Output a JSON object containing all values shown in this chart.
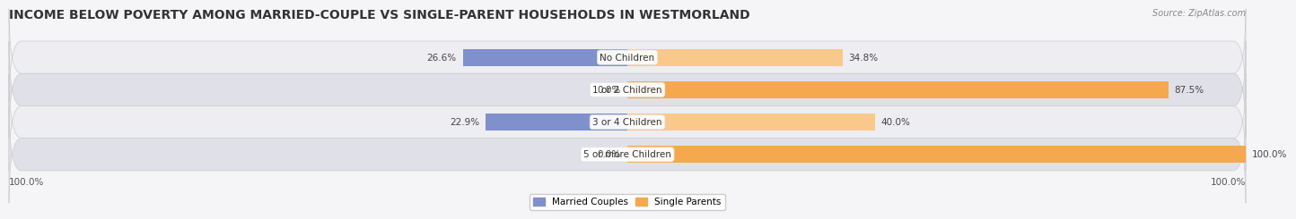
{
  "title": "INCOME BELOW POVERTY AMONG MARRIED-COUPLE VS SINGLE-PARENT HOUSEHOLDS IN WESTMORLAND",
  "source": "Source: ZipAtlas.com",
  "categories": [
    "No Children",
    "1 or 2 Children",
    "3 or 4 Children",
    "5 or more Children"
  ],
  "married_values": [
    26.6,
    0.0,
    22.9,
    0.0
  ],
  "single_values": [
    34.8,
    87.5,
    40.0,
    100.0
  ],
  "married_color": "#8090cc",
  "married_color_light": "#b0bcdf",
  "single_color": "#f5a84e",
  "single_color_light": "#f8c98a",
  "row_bg_odd": "#ededf2",
  "row_bg_even": "#e0e0e8",
  "max_value": 100.0,
  "bar_height": 0.52,
  "legend_labels": [
    "Married Couples",
    "Single Parents"
  ],
  "axis_label_left": "100.0%",
  "axis_label_right": "100.0%",
  "title_fontsize": 10,
  "label_fontsize": 7.5,
  "category_fontsize": 7.5,
  "source_fontsize": 7,
  "fig_bg": "#f5f5f8"
}
